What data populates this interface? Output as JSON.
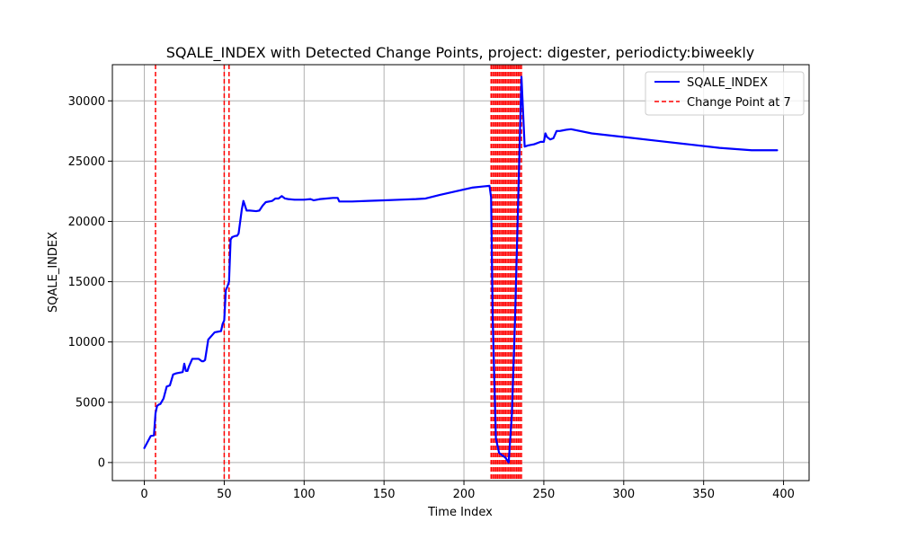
{
  "chart_data": {
    "type": "line",
    "title": "SQALE_INDEX with Detected Change Points, project: digester, periodicty:biweekly",
    "xlabel": "Time Index",
    "ylabel": "SQALE_INDEX",
    "xlim": [
      -20,
      416
    ],
    "ylim": [
      -1500,
      33000
    ],
    "xticks": [
      0,
      50,
      100,
      150,
      200,
      250,
      300,
      350,
      400
    ],
    "yticks": [
      0,
      5000,
      10000,
      15000,
      20000,
      25000,
      30000
    ],
    "grid": true,
    "legend_position": "top-right",
    "series": [
      {
        "name": "SQALE_INDEX",
        "color": "#0000ff",
        "style": "solid",
        "x": [
          0,
          4,
          6,
          7,
          8,
          9,
          10,
          12,
          14,
          16,
          18,
          20,
          24,
          25,
          26,
          27,
          28,
          30,
          32,
          34,
          36,
          37,
          38,
          40,
          44,
          46,
          48,
          49,
          50,
          51,
          52,
          53,
          54,
          55,
          56,
          57,
          58,
          59,
          60,
          61,
          62,
          64,
          66,
          70,
          72,
          74,
          76,
          80,
          82,
          84,
          85,
          86,
          88,
          90,
          94,
          98,
          100,
          104,
          106,
          108,
          110,
          114,
          118,
          121,
          122,
          124,
          130,
          140,
          150,
          160,
          170,
          176,
          185,
          195,
          205,
          212,
          216,
          217,
          218,
          219,
          220,
          222,
          224,
          226,
          228,
          230,
          232,
          234,
          236,
          238,
          240,
          244,
          248,
          250,
          251,
          252,
          254,
          256,
          258,
          260,
          262,
          264,
          267,
          280,
          300,
          320,
          340,
          360,
          380,
          396
        ],
        "y": [
          1200,
          2200,
          2250,
          4100,
          4700,
          4800,
          4850,
          5300,
          6300,
          6400,
          7300,
          7400,
          7500,
          8200,
          7600,
          7600,
          8000,
          8600,
          8600,
          8600,
          8400,
          8400,
          8500,
          10200,
          10800,
          10850,
          10900,
          11500,
          11800,
          14300,
          14600,
          15000,
          18500,
          18700,
          18750,
          18800,
          18800,
          19000,
          20000,
          21000,
          21700,
          20900,
          20900,
          20850,
          20900,
          21300,
          21600,
          21700,
          21900,
          21900,
          22000,
          22100,
          21900,
          21850,
          21800,
          21800,
          21800,
          21850,
          21750,
          21800,
          21850,
          21900,
          21950,
          21950,
          21650,
          21650,
          21650,
          21700,
          21750,
          21800,
          21850,
          21900,
          22200,
          22500,
          22800,
          22900,
          22950,
          22000,
          12000,
          7000,
          2000,
          800,
          600,
          400,
          0,
          4000,
          12000,
          22000,
          32000,
          26200,
          26300,
          26400,
          26600,
          26600,
          27300,
          27000,
          26800,
          26900,
          27500,
          27500,
          27550,
          27600,
          27650,
          27300,
          27000,
          26700,
          26400,
          26100,
          25900,
          25900
        ]
      }
    ],
    "change_points": {
      "name": "Change Point at 7",
      "color": "#ff0000",
      "style": "dashed",
      "x": [
        7,
        50,
        53,
        217,
        218,
        219,
        220,
        221,
        222,
        223,
        224,
        225,
        226,
        227,
        228,
        229,
        230,
        231,
        232,
        233,
        234,
        235,
        236
      ]
    }
  }
}
